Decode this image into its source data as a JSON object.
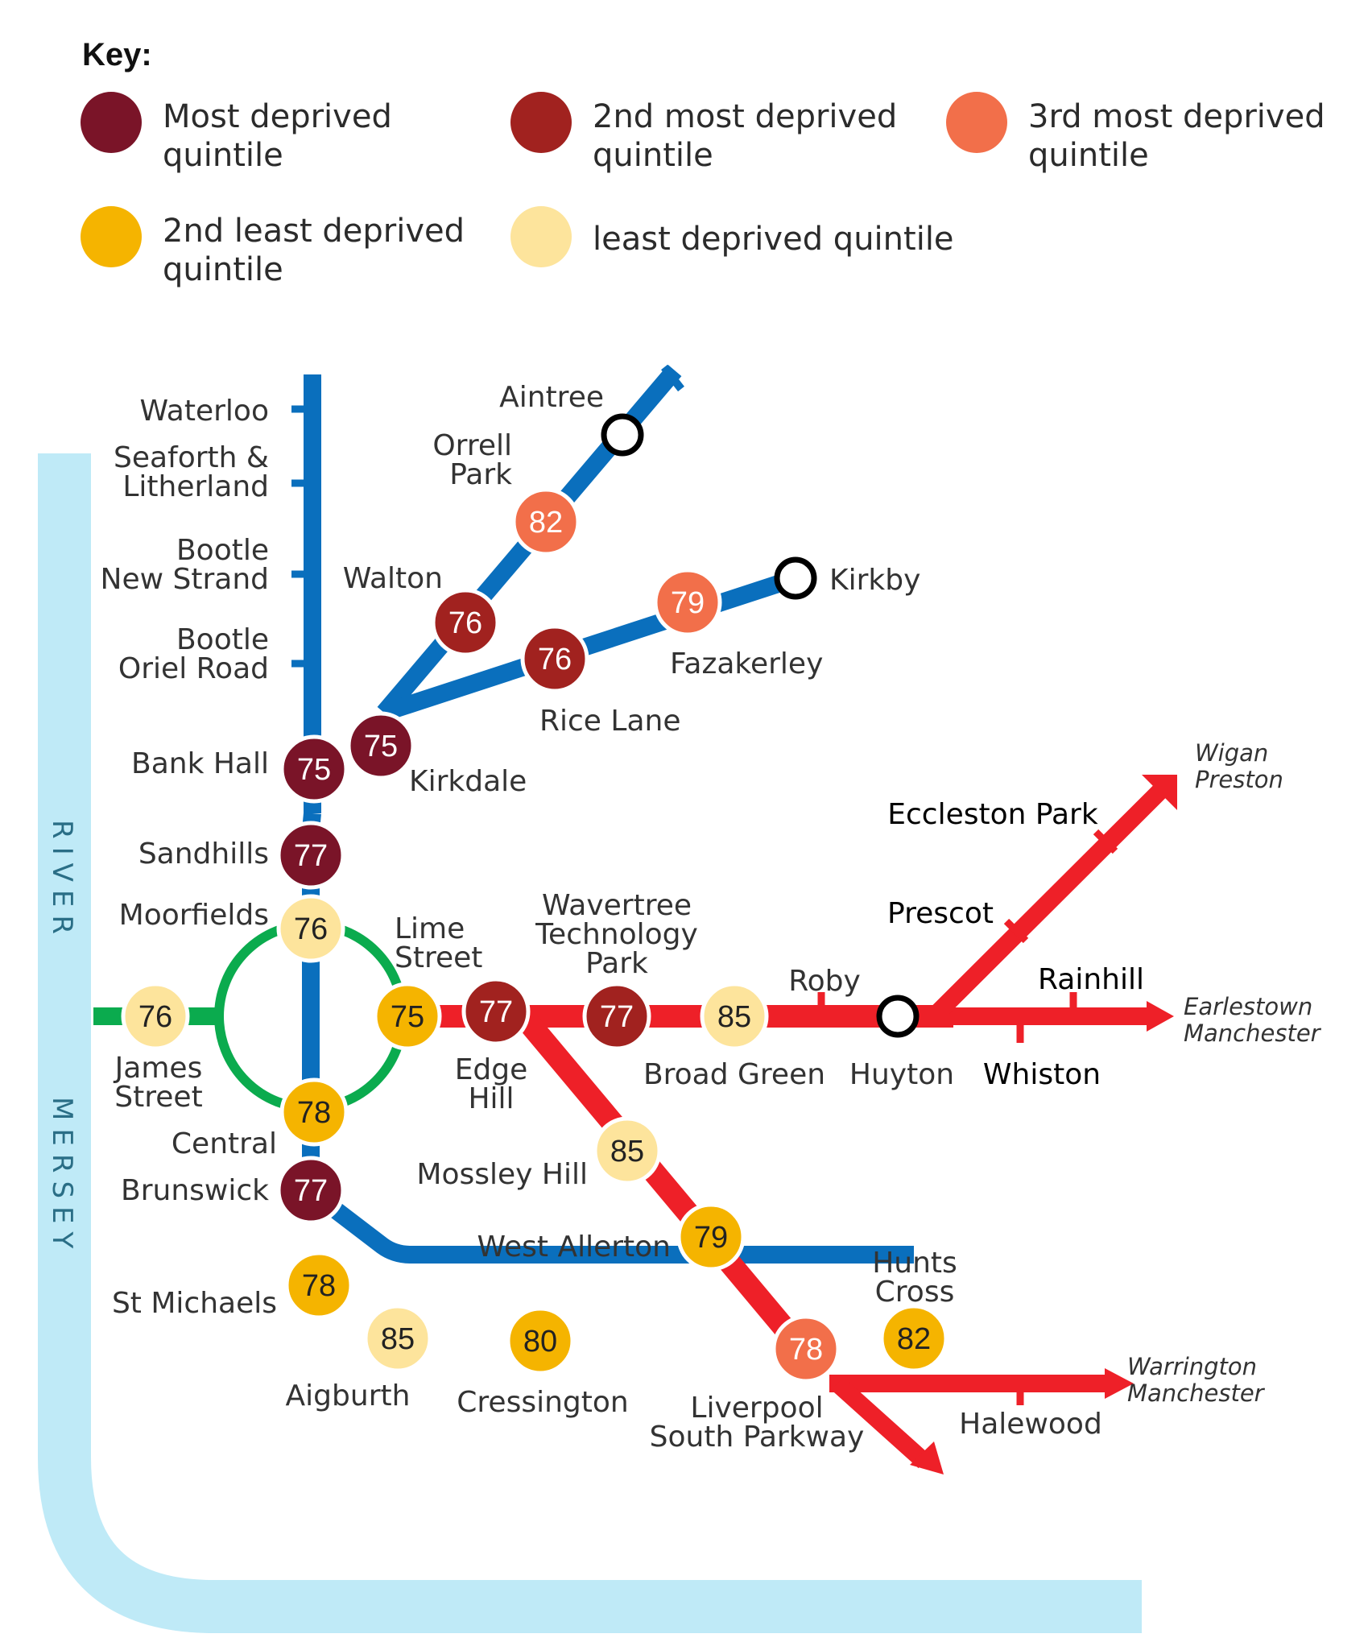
{
  "colors": {
    "most_deprived": "#7a1428",
    "second_most_deprived": "#a1221f",
    "third_most_deprived": "#f26f4a",
    "second_least_deprived": "#f5b400",
    "least_deprived": "#fde49c",
    "river": "#bfeaf7",
    "blue_line": "#0a6fbd",
    "green_line": "#0bab4e",
    "red_line": "#ee2028"
  },
  "key": {
    "title": "Key:",
    "items": [
      {
        "quintile": "most_deprived",
        "line1": "Most deprived",
        "line2": "quintile"
      },
      {
        "quintile": "second_most_deprived",
        "line1": "2nd most deprived",
        "line2": "quintile"
      },
      {
        "quintile": "third_most_deprived",
        "line1": "3rd most deprived",
        "line2": "quintile"
      },
      {
        "quintile": "second_least_deprived",
        "line1": "2nd least deprived",
        "line2": "quintile"
      },
      {
        "quintile": "least_deprived",
        "line1": "least deprived quintile",
        "line2": ""
      }
    ]
  },
  "river": {
    "word1": "RIVER",
    "word2": "MERSEY"
  },
  "stations": [
    {
      "id": "waterloo",
      "name": [
        "Waterloo"
      ],
      "value": null
    },
    {
      "id": "seaforth",
      "name": [
        "Seaforth &",
        "Litherland"
      ],
      "value": null
    },
    {
      "id": "bootle-new-strand",
      "name": [
        "Bootle",
        "New Strand"
      ],
      "value": null
    },
    {
      "id": "bootle-oriel-road",
      "name": [
        "Bootle",
        "Oriel Road"
      ],
      "value": null
    },
    {
      "id": "bank-hall",
      "name": [
        "Bank Hall"
      ],
      "value": "75",
      "quintile": "most_deprived"
    },
    {
      "id": "kirkdale",
      "name": [
        "Kirkdale"
      ],
      "value": "75",
      "quintile": "most_deprived"
    },
    {
      "id": "sandhills",
      "name": [
        "Sandhills"
      ],
      "value": "77",
      "quintile": "most_deprived"
    },
    {
      "id": "aintree",
      "name": [
        "Aintree"
      ],
      "value": null
    },
    {
      "id": "orrell-park",
      "name": [
        "Orrell",
        "Park"
      ],
      "value": "82",
      "quintile": "third_most_deprived"
    },
    {
      "id": "walton",
      "name": [
        "Walton"
      ],
      "value": "76",
      "quintile": "second_most_deprived"
    },
    {
      "id": "kirkby",
      "name": [
        "Kirkby"
      ],
      "value": null
    },
    {
      "id": "fazakerley",
      "name": [
        "Fazakerley"
      ],
      "value": "79",
      "quintile": "third_most_deprived"
    },
    {
      "id": "rice-lane",
      "name": [
        "Rice Lane"
      ],
      "value": "76",
      "quintile": "second_most_deprived"
    },
    {
      "id": "moorfields",
      "name": [
        "Moorfields"
      ],
      "value": "76",
      "quintile": "least_deprived"
    },
    {
      "id": "james-street",
      "name": [
        "James",
        "Street"
      ],
      "value": "76",
      "quintile": "least_deprived"
    },
    {
      "id": "lime-street",
      "name": [
        "Lime",
        "Street"
      ],
      "value": "75",
      "quintile": "second_least_deprived"
    },
    {
      "id": "central",
      "name": [
        "Central"
      ],
      "value": "78",
      "quintile": "second_least_deprived"
    },
    {
      "id": "edge-hill",
      "name": [
        "Edge",
        "Hill"
      ],
      "value": "77",
      "quintile": "second_most_deprived"
    },
    {
      "id": "wavertree",
      "name": [
        "Wavertree",
        "Technology",
        "Park"
      ],
      "value": "77",
      "quintile": "second_most_deprived"
    },
    {
      "id": "broad-green",
      "name": [
        "Broad Green"
      ],
      "value": "85",
      "quintile": "least_deprived"
    },
    {
      "id": "roby",
      "name": [
        "Roby"
      ],
      "value": null
    },
    {
      "id": "huyton",
      "name": [
        "Huyton"
      ],
      "value": null
    },
    {
      "id": "prescot",
      "name": [
        "Prescot"
      ],
      "value": null
    },
    {
      "id": "eccleston-park",
      "name": [
        "Eccleston Park"
      ],
      "value": null
    },
    {
      "id": "rainhill",
      "name": [
        "Rainhill"
      ],
      "value": null
    },
    {
      "id": "whiston",
      "name": [
        "Whiston"
      ],
      "value": null
    },
    {
      "id": "brunswick",
      "name": [
        "Brunswick"
      ],
      "value": "77",
      "quintile": "most_deprived"
    },
    {
      "id": "st-michaels",
      "name": [
        "St Michaels"
      ],
      "value": "78",
      "quintile": "second_least_deprived"
    },
    {
      "id": "aigburth",
      "name": [
        "Aigburth"
      ],
      "value": "85",
      "quintile": "least_deprived"
    },
    {
      "id": "cressington",
      "name": [
        "Cressington"
      ],
      "value": "80",
      "quintile": "second_least_deprived"
    },
    {
      "id": "mossley-hill",
      "name": [
        "Mossley Hill"
      ],
      "value": "85",
      "quintile": "least_deprived"
    },
    {
      "id": "west-allerton",
      "name": [
        "West Allerton"
      ],
      "value": "79",
      "quintile": "second_least_deprived"
    },
    {
      "id": "liverpool-south-parkway",
      "name": [
        "Liverpool",
        "South Parkway"
      ],
      "value": "78",
      "quintile": "third_most_deprived"
    },
    {
      "id": "hunts-cross",
      "name": [
        "Hunts",
        "Cross"
      ],
      "value": "82",
      "quintile": "second_least_deprived"
    },
    {
      "id": "halewood",
      "name": [
        "Halewood"
      ],
      "value": null
    }
  ],
  "destinations": [
    {
      "id": "wigan-preston",
      "name": [
        "Wigan",
        "Preston"
      ]
    },
    {
      "id": "earlestown-manchester",
      "name": [
        "Earlestown",
        "Manchester"
      ]
    },
    {
      "id": "warrington-manchester",
      "name": [
        "Warrington",
        "Manchester"
      ]
    }
  ]
}
